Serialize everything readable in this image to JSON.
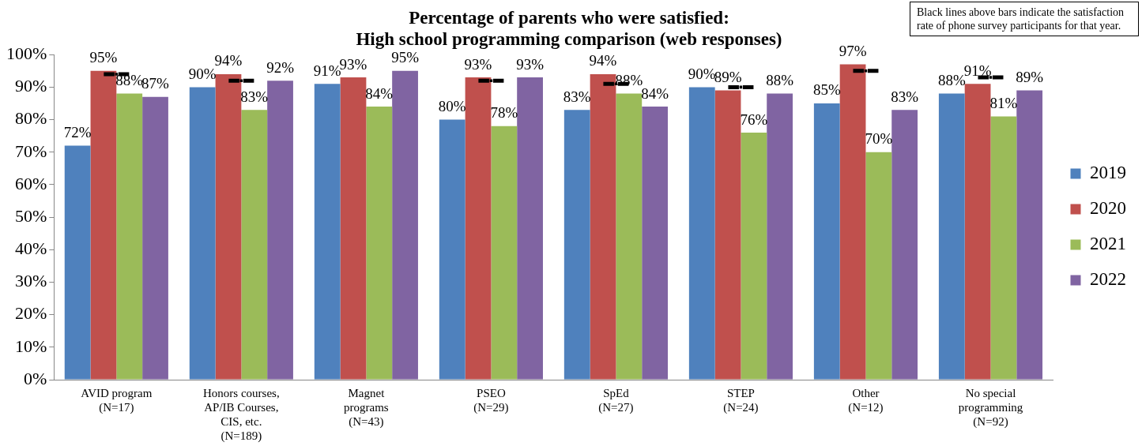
{
  "chart_data": {
    "type": "bar",
    "title": "Percentage of parents who were satisfied:\nHigh school programming comparison (web responses)",
    "categories": [
      "AVID program\n(N=17)",
      "Honors courses,\nAP/IB Courses,\nCIS, etc.\n(N=189)",
      "Magnet\nprograms\n(N=43)",
      "PSEO\n(N=29)",
      "SpEd\n(N=27)",
      "STEP\n(N=24)",
      "Other\n(N=12)",
      "No special\nprogramming\n(N=92)"
    ],
    "series": [
      {
        "name": "2019",
        "color": "#4f81bd",
        "values": [
          72,
          90,
          91,
          80,
          83,
          90,
          85,
          88
        ],
        "value_labels": [
          "72%",
          "90%",
          "91%",
          "80%",
          "83%",
          "90%",
          "85%",
          "88%"
        ]
      },
      {
        "name": "2020",
        "color": "#c0504d",
        "values": [
          95,
          94,
          93,
          93,
          94,
          89,
          97,
          91
        ],
        "value_labels": [
          "95%",
          "94%",
          "93%",
          "93%",
          "94%",
          "89%",
          "97%",
          "91%"
        ]
      },
      {
        "name": "2021",
        "color": "#9bbb59",
        "values": [
          88,
          83,
          84,
          78,
          88,
          76,
          70,
          81
        ],
        "value_labels": [
          "88%",
          "83%",
          "84%",
          "78%",
          "88%",
          "76%",
          "70%",
          "81%"
        ]
      },
      {
        "name": "2022",
        "color": "#8064a2",
        "values": [
          87,
          92,
          95,
          93,
          84,
          88,
          83,
          89
        ],
        "value_labels": [
          "87%",
          "92%",
          "95%",
          "93%",
          "84%",
          "88%",
          "83%",
          "89%"
        ]
      },
      {
        "type": "scatter",
        "color": "#000000",
        "values": [
          94,
          92,
          null,
          92,
          91,
          90,
          95,
          93
        ]
      }
    ],
    "ylim": [
      0,
      100
    ],
    "yticks": [
      {
        "value": 0,
        "label": "0%"
      },
      {
        "value": 10,
        "label": "10%"
      },
      {
        "value": 20,
        "label": "20%"
      },
      {
        "value": 30,
        "label": "30%"
      },
      {
        "value": 40,
        "label": "40%"
      },
      {
        "value": 50,
        "label": "50%"
      },
      {
        "value": 60,
        "label": "60%"
      },
      {
        "value": 70,
        "label": "70%"
      },
      {
        "value": 80,
        "label": "80%"
      },
      {
        "value": 90,
        "label": "90%"
      },
      {
        "value": 100,
        "label": "100%"
      }
    ],
    "grid": false,
    "legend": "right",
    "annotations": [
      "Black lines above bars indicate the satisfaction rate of phone survey participants for that year."
    ]
  }
}
